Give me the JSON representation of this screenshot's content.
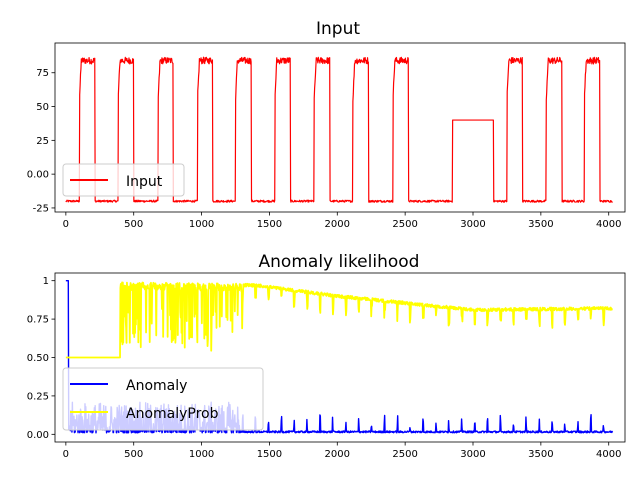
{
  "chart_data": [
    {
      "type": "line",
      "title": "Input",
      "xlabel": "",
      "ylabel": "",
      "xlim": [
        -80,
        4120
      ],
      "ylim": [
        -28,
        97
      ],
      "xticks": [
        0,
        500,
        1000,
        1500,
        2000,
        2500,
        3000,
        3500,
        4000
      ],
      "yticks": [
        -25,
        0,
        25,
        50,
        75
      ],
      "legend": {
        "placement": "lower-left",
        "entries": [
          "Input"
        ]
      },
      "series": [
        {
          "name": "Input",
          "color": "#ff0000",
          "square_wave": {
            "x_start": 0,
            "x_end": 4030,
            "low_level": -20,
            "high_level": 83,
            "high_intervals": [
              [
                100,
                215
              ],
              [
                385,
                500
              ],
              [
                680,
                790
              ],
              [
                970,
                1080
              ],
              [
                1250,
                1365
              ],
              [
                1540,
                1655
              ],
              [
                1830,
                1945
              ],
              [
                2115,
                2230
              ],
              [
                2410,
                2525
              ],
              [
                3250,
                3365
              ],
              [
                3540,
                3655
              ],
              [
                3820,
                3935
              ]
            ],
            "plateau": {
              "x": [
                2850,
                3150
              ],
              "level": 40
            },
            "high_noise": 5,
            "low_noise": 1.5
          }
        }
      ]
    },
    {
      "type": "line",
      "title": "Anomaly likelihood",
      "xlabel": "",
      "ylabel": "",
      "xlim": [
        -80,
        4120
      ],
      "ylim": [
        -0.05,
        1.05
      ],
      "xticks": [
        0,
        500,
        1000,
        1500,
        2000,
        2500,
        3000,
        3500,
        4000
      ],
      "yticks": [
        0.0,
        0.25,
        0.5,
        0.75,
        1.0
      ],
      "legend": {
        "placement": "lower-left",
        "entries": [
          "Anomaly",
          "AnomalyProb"
        ]
      },
      "series": [
        {
          "name": "Anomaly",
          "color": "#0000ff",
          "initial": {
            "x": [
              0,
              20
            ],
            "value": 1.0
          },
          "baseline": 0.01,
          "spike_interval": 95,
          "spike_start": 1300,
          "spike_height": [
            0.03,
            0.13
          ],
          "early_noise_until": 1280,
          "early_noise_max": 0.2
        },
        {
          "name": "AnomalyProb",
          "color": "#ffff00",
          "flat": {
            "x": [
              0,
              400
            ],
            "value": 0.5
          },
          "rise_x": 400,
          "trend": [
            [
              400,
              0.99
            ],
            [
              1400,
              0.98
            ],
            [
              2000,
              0.91
            ],
            [
              3000,
              0.82
            ],
            [
              4030,
              0.83
            ]
          ],
          "dips_until": 1300,
          "dip_depth": [
            0.15,
            0.4
          ],
          "spike_interval": 95,
          "late_dip_depth": [
            0.03,
            0.12
          ]
        }
      ]
    }
  ]
}
